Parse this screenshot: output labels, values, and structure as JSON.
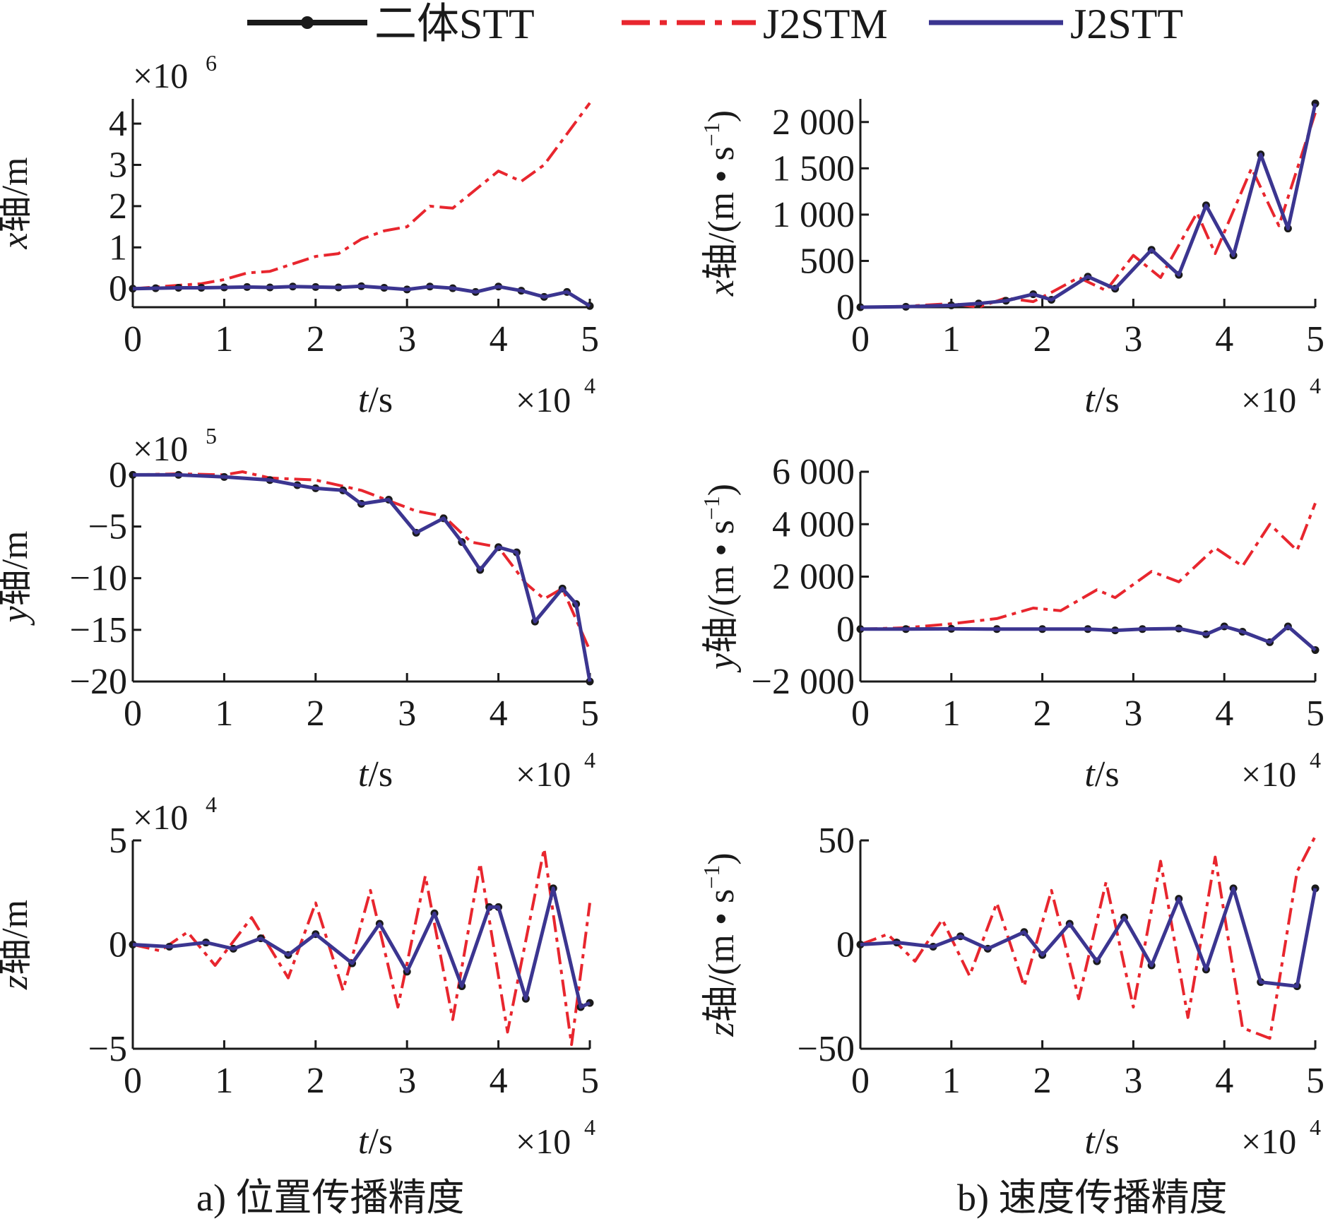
{
  "legend": [
    {
      "label": "二体STT",
      "color": "#1a1a1a",
      "dash": "solid",
      "marker": true
    },
    {
      "label": "J2STM",
      "color": "#e8262e",
      "dash": "dashdot",
      "marker": false
    },
    {
      "label": "J2STT",
      "color": "#3b3590",
      "dash": "solid",
      "marker": false
    }
  ],
  "captions": {
    "a": "a) 位置传播精度",
    "b": "b) 速度传播精度"
  },
  "chart_data": [
    {
      "id": "x-pos",
      "type": "line",
      "ylabel_axis": "x",
      "ylabel_rest": "轴/m",
      "xlabel_axis": "t",
      "xlabel_rest": "/s",
      "x_multiplier": "×10",
      "x_exp": "4",
      "y_multiplier": "×10",
      "y_exp": "6",
      "xlim": [
        0,
        5
      ],
      "ylim": [
        -0.45,
        4.6
      ],
      "xticks": [
        0,
        1,
        2,
        3,
        4,
        5
      ],
      "yticks": [
        0,
        1,
        2,
        3,
        4
      ],
      "ytick_labels": [
        "0",
        "1",
        "2",
        "3",
        "4"
      ],
      "series": [
        {
          "name": "二体STT",
          "x": [
            0,
            0.25,
            0.5,
            0.75,
            1,
            1.25,
            1.5,
            1.75,
            2,
            2.25,
            2.5,
            2.75,
            3,
            3.25,
            3.5,
            3.75,
            4,
            4.25,
            4.5,
            4.75,
            5
          ],
          "y": [
            0,
            0.01,
            0.02,
            0.02,
            0.03,
            0.04,
            0.03,
            0.05,
            0.04,
            0.03,
            0.06,
            0.02,
            -0.02,
            0.05,
            0.01,
            -0.08,
            0.05,
            -0.05,
            -0.2,
            -0.08,
            -0.42
          ]
        },
        {
          "name": "J2STM",
          "x": [
            0,
            0.25,
            0.5,
            0.75,
            1,
            1.25,
            1.5,
            1.75,
            2,
            2.25,
            2.5,
            2.75,
            3,
            3.25,
            3.5,
            3.75,
            4,
            4.25,
            4.5,
            4.75,
            5
          ],
          "y": [
            0,
            0.04,
            0.08,
            0.12,
            0.22,
            0.38,
            0.42,
            0.6,
            0.78,
            0.85,
            1.2,
            1.4,
            1.5,
            2.0,
            1.95,
            2.4,
            2.85,
            2.6,
            3.0,
            3.75,
            4.5
          ]
        },
        {
          "name": "J2STT",
          "x": [
            0,
            0.25,
            0.5,
            0.75,
            1,
            1.25,
            1.5,
            1.75,
            2,
            2.25,
            2.5,
            2.75,
            3,
            3.25,
            3.5,
            3.75,
            4,
            4.25,
            4.5,
            4.75,
            5
          ],
          "y": [
            0,
            0.01,
            0.02,
            0.02,
            0.03,
            0.04,
            0.03,
            0.05,
            0.04,
            0.03,
            0.06,
            0.02,
            -0.02,
            0.05,
            0.01,
            -0.08,
            0.05,
            -0.05,
            -0.2,
            -0.08,
            -0.42
          ]
        }
      ]
    },
    {
      "id": "x-vel",
      "type": "line",
      "ylabel_axis": "x",
      "ylabel_rest": "轴/(m • s",
      "ylabel_sup": "−1",
      "ylabel_tail": ")",
      "xlabel_axis": "t",
      "xlabel_rest": "/s",
      "x_multiplier": "×10",
      "x_exp": "4",
      "xlim": [
        0,
        5
      ],
      "ylim": [
        0,
        2250
      ],
      "xticks": [
        0,
        1,
        2,
        3,
        4,
        5
      ],
      "yticks": [
        0,
        500,
        1000,
        1500,
        2000
      ],
      "ytick_labels": [
        "0",
        "500",
        "1 000",
        "1 500",
        "2 000"
      ],
      "series": [
        {
          "name": "二体STT",
          "x": [
            0,
            0.5,
            1,
            1.3,
            1.6,
            1.9,
            2.1,
            2.5,
            2.8,
            3.2,
            3.5,
            3.8,
            4.1,
            4.4,
            4.7,
            5
          ],
          "y": [
            0,
            5,
            20,
            40,
            70,
            140,
            80,
            330,
            200,
            620,
            350,
            1100,
            560,
            1650,
            850,
            2200
          ]
        },
        {
          "name": "J2STM",
          "x": [
            0,
            0.5,
            1,
            1.3,
            1.6,
            1.9,
            2.1,
            2.4,
            2.7,
            3.0,
            3.3,
            3.7,
            3.9,
            4.3,
            4.6,
            5
          ],
          "y": [
            0,
            10,
            40,
            0,
            100,
            60,
            160,
            320,
            180,
            560,
            320,
            1020,
            580,
            1500,
            880,
            2100
          ]
        },
        {
          "name": "J2STT",
          "x": [
            0,
            0.5,
            1,
            1.3,
            1.6,
            1.9,
            2.1,
            2.5,
            2.8,
            3.2,
            3.5,
            3.8,
            4.1,
            4.4,
            4.7,
            5
          ],
          "y": [
            0,
            5,
            20,
            40,
            70,
            140,
            80,
            330,
            200,
            620,
            350,
            1100,
            560,
            1650,
            850,
            2200
          ]
        }
      ]
    },
    {
      "id": "y-pos",
      "type": "line",
      "ylabel_axis": "y",
      "ylabel_rest": "轴/m",
      "xlabel_axis": "t",
      "xlabel_rest": "/s",
      "x_multiplier": "×10",
      "x_exp": "4",
      "y_multiplier": "×10",
      "y_exp": "5",
      "xlim": [
        0,
        5
      ],
      "ylim": [
        -20,
        0.3
      ],
      "xticks": [
        0,
        1,
        2,
        3,
        4,
        5
      ],
      "yticks": [
        0,
        -5,
        -10,
        -15,
        -20
      ],
      "ytick_labels": [
        "0",
        "−5",
        "−10",
        "−15",
        "−20"
      ],
      "series": [
        {
          "name": "二体STT",
          "x": [
            0,
            0.5,
            1,
            1.5,
            1.8,
            2,
            2.3,
            2.5,
            2.8,
            3.1,
            3.4,
            3.6,
            3.8,
            4,
            4.2,
            4.4,
            4.7,
            4.85,
            5
          ],
          "y": [
            0,
            0,
            -0.2,
            -0.5,
            -1,
            -1.3,
            -1.5,
            -2.8,
            -2.4,
            -5.6,
            -4.2,
            -6.5,
            -9.2,
            -7.0,
            -7.5,
            -14.2,
            -11.0,
            -12.5,
            -20
          ]
        },
        {
          "name": "J2STM",
          "x": [
            0,
            0.5,
            1,
            1.2,
            1.5,
            2,
            2.5,
            2.8,
            3.1,
            3.4,
            3.7,
            4,
            4.3,
            4.5,
            4.7,
            5
          ],
          "y": [
            0,
            0.1,
            0,
            0.3,
            -0.3,
            -0.5,
            -1.5,
            -2.5,
            -3.5,
            -4.0,
            -6.5,
            -7.0,
            -10.5,
            -12.0,
            -11.0,
            -17.0
          ]
        },
        {
          "name": "J2STT",
          "x": [
            0,
            0.5,
            1,
            1.5,
            1.8,
            2,
            2.3,
            2.5,
            2.8,
            3.1,
            3.4,
            3.6,
            3.8,
            4,
            4.2,
            4.4,
            4.7,
            4.85,
            5
          ],
          "y": [
            0,
            0,
            -0.2,
            -0.5,
            -1,
            -1.3,
            -1.5,
            -2.8,
            -2.4,
            -5.6,
            -4.2,
            -6.5,
            -9.2,
            -7.0,
            -7.5,
            -14.2,
            -11.0,
            -12.5,
            -20
          ]
        }
      ]
    },
    {
      "id": "y-vel",
      "type": "line",
      "ylabel_axis": "y",
      "ylabel_rest": "轴/(m • s",
      "ylabel_sup": "−1",
      "ylabel_tail": ")",
      "xlabel_axis": "t",
      "xlabel_rest": "/s",
      "x_multiplier": "×10",
      "x_exp": "4",
      "xlim": [
        0,
        5
      ],
      "ylim": [
        -2000,
        6000
      ],
      "xticks": [
        0,
        1,
        2,
        3,
        4,
        5
      ],
      "yticks": [
        -2000,
        0,
        2000,
        4000,
        6000
      ],
      "ytick_labels": [
        "−2 000",
        "0",
        "2 000",
        "4 000",
        "6 000"
      ],
      "series": [
        {
          "name": "二体STT",
          "x": [
            0,
            0.5,
            1,
            1.5,
            2,
            2.5,
            2.8,
            3.1,
            3.5,
            3.8,
            4.0,
            4.2,
            4.5,
            4.7,
            5
          ],
          "y": [
            0,
            0,
            10,
            0,
            0,
            0,
            -50,
            0,
            20,
            -200,
            100,
            -100,
            -500,
            100,
            -800
          ]
        },
        {
          "name": "J2STM",
          "x": [
            0,
            0.5,
            1,
            1.5,
            1.9,
            2.2,
            2.6,
            2.8,
            3.2,
            3.5,
            3.9,
            4.2,
            4.5,
            4.8,
            5
          ],
          "y": [
            0,
            50,
            200,
            400,
            800,
            700,
            1500,
            1200,
            2200,
            1800,
            3100,
            2400,
            4000,
            3000,
            4800
          ]
        },
        {
          "name": "J2STT",
          "x": [
            0,
            0.5,
            1,
            1.5,
            2,
            2.5,
            2.8,
            3.1,
            3.5,
            3.8,
            4.0,
            4.2,
            4.5,
            4.7,
            5
          ],
          "y": [
            0,
            0,
            10,
            0,
            0,
            0,
            -50,
            0,
            20,
            -200,
            100,
            -100,
            -500,
            100,
            -800
          ]
        }
      ]
    },
    {
      "id": "z-pos",
      "type": "line",
      "ylabel_axis": "z",
      "ylabel_rest": "轴/m",
      "xlabel_axis": "t",
      "xlabel_rest": "/s",
      "x_multiplier": "×10",
      "x_exp": "4",
      "y_multiplier": "×10",
      "y_exp": "4",
      "xlim": [
        0,
        5
      ],
      "ylim": [
        -5,
        5
      ],
      "xticks": [
        0,
        1,
        2,
        3,
        4,
        5
      ],
      "yticks": [
        -5,
        0,
        5
      ],
      "ytick_labels": [
        "−5",
        "0",
        "5"
      ],
      "series": [
        {
          "name": "二体STT",
          "x": [
            0,
            0.4,
            0.8,
            1.1,
            1.4,
            1.7,
            2.0,
            2.4,
            2.7,
            3.0,
            3.3,
            3.6,
            3.9,
            4.0,
            4.3,
            4.6,
            4.9,
            5.0
          ],
          "y": [
            0,
            -0.1,
            0.1,
            -0.2,
            0.3,
            -0.5,
            0.5,
            -0.9,
            1.0,
            -1.3,
            1.5,
            -2.0,
            1.8,
            1.8,
            -2.6,
            2.7,
            -3.0,
            -2.8
          ]
        },
        {
          "name": "J2STM",
          "x": [
            0,
            0.3,
            0.6,
            0.9,
            1.3,
            1.7,
            2.0,
            2.3,
            2.6,
            2.9,
            3.2,
            3.5,
            3.8,
            4.1,
            4.5,
            4.8,
            5.0
          ],
          "y": [
            0,
            -0.3,
            0.6,
            -1.0,
            1.3,
            -1.6,
            2.0,
            -2.2,
            2.6,
            -3.0,
            3.3,
            -3.6,
            3.9,
            -4.2,
            4.6,
            -4.8,
            2.0
          ]
        },
        {
          "name": "J2STT",
          "x": [
            0,
            0.4,
            0.8,
            1.1,
            1.4,
            1.7,
            2.0,
            2.4,
            2.7,
            3.0,
            3.3,
            3.6,
            3.9,
            4.0,
            4.3,
            4.6,
            4.9,
            5.0
          ],
          "y": [
            0,
            -0.1,
            0.1,
            -0.2,
            0.3,
            -0.5,
            0.5,
            -0.9,
            1.0,
            -1.3,
            1.5,
            -2.0,
            1.8,
            1.8,
            -2.6,
            2.7,
            -3.0,
            -2.8
          ]
        }
      ]
    },
    {
      "id": "z-vel",
      "type": "line",
      "ylabel_axis": "z",
      "ylabel_rest": "轴/(m • s",
      "ylabel_sup": "−1",
      "ylabel_tail": ")",
      "xlabel_axis": "t",
      "xlabel_rest": "/s",
      "x_multiplier": "×10",
      "x_exp": "4",
      "xlim": [
        0,
        5
      ],
      "ylim": [
        -50,
        50
      ],
      "xticks": [
        0,
        1,
        2,
        3,
        4,
        5
      ],
      "yticks": [
        -50,
        0,
        50
      ],
      "ytick_labels": [
        "−50",
        "0",
        "50"
      ],
      "series": [
        {
          "name": "二体STT",
          "x": [
            0,
            0.4,
            0.8,
            1.1,
            1.4,
            1.8,
            2.0,
            2.3,
            2.6,
            2.9,
            3.2,
            3.5,
            3.8,
            4.1,
            4.4,
            4.8,
            5.0
          ],
          "y": [
            0,
            1,
            -1,
            4,
            -2,
            6,
            -5,
            10,
            -8,
            13,
            -10,
            22,
            -12,
            27,
            -18,
            -20,
            27
          ]
        },
        {
          "name": "J2STM",
          "x": [
            0,
            0.3,
            0.6,
            0.9,
            1.2,
            1.5,
            1.8,
            2.1,
            2.4,
            2.7,
            3.0,
            3.3,
            3.6,
            3.9,
            4.2,
            4.5,
            4.8,
            5.0
          ],
          "y": [
            0,
            5,
            -8,
            12,
            -15,
            20,
            -20,
            26,
            -26,
            30,
            -30,
            40,
            -35,
            42,
            -40,
            -45,
            35,
            52
          ]
        },
        {
          "name": "J2STT",
          "x": [
            0,
            0.4,
            0.8,
            1.1,
            1.4,
            1.8,
            2.0,
            2.3,
            2.6,
            2.9,
            3.2,
            3.5,
            3.8,
            4.1,
            4.4,
            4.8,
            5.0
          ],
          "y": [
            0,
            1,
            -1,
            4,
            -2,
            6,
            -5,
            10,
            -8,
            13,
            -10,
            22,
            -12,
            27,
            -18,
            -20,
            27
          ]
        }
      ]
    }
  ]
}
